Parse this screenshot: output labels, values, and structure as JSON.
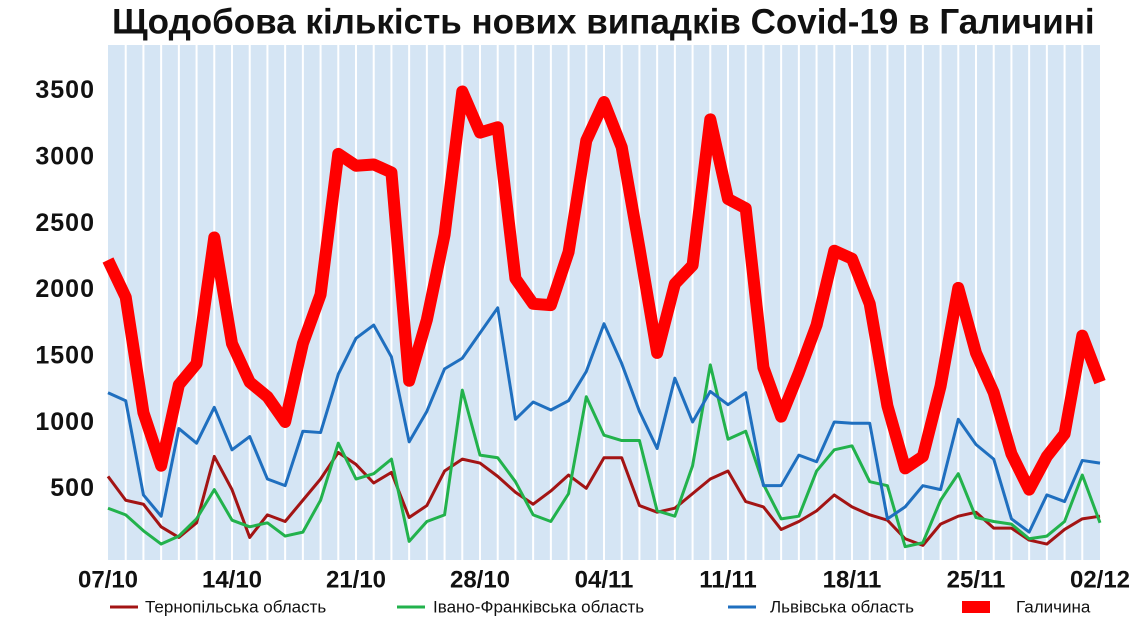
{
  "chart_data": {
    "type": "line",
    "title": "Щодобова кількість нових випадків Covid-19 в Галичині",
    "categories": [
      "07/10",
      null,
      null,
      null,
      null,
      null,
      null,
      "14/10",
      null,
      null,
      null,
      null,
      null,
      null,
      "21/10",
      null,
      null,
      null,
      null,
      null,
      null,
      "28/10",
      null,
      null,
      null,
      null,
      null,
      null,
      "04/11",
      null,
      null,
      null,
      null,
      null,
      null,
      "11/11",
      null,
      null,
      null,
      null,
      null,
      null,
      "18/11",
      null,
      null,
      null,
      null,
      null,
      null,
      "25/11",
      null,
      null,
      null,
      null,
      null,
      null,
      "02/12"
    ],
    "ylim": [
      0,
      3850
    ],
    "yticks": [
      500,
      1000,
      1500,
      2000,
      2500,
      3000,
      3500
    ],
    "series": [
      {
        "name": "Тернопільська область",
        "color": "#a31414",
        "line_width": 3,
        "values": [
          600,
          420,
          390,
          220,
          140,
          250,
          750,
          500,
          140,
          310,
          260,
          420,
          580,
          780,
          690,
          550,
          630,
          290,
          380,
          640,
          730,
          700,
          600,
          480,
          390,
          490,
          610,
          510,
          740,
          740,
          380,
          330,
          360,
          470,
          580,
          640,
          410,
          370,
          200,
          260,
          340,
          460,
          370,
          310,
          270,
          130,
          80,
          240,
          300,
          330,
          210,
          210,
          120,
          90,
          200,
          280,
          300
        ]
      },
      {
        "name": "Івано-Франківська область",
        "color": "#22b24c",
        "line_width": 3,
        "values": [
          360,
          310,
          190,
          90,
          150,
          280,
          500,
          270,
          220,
          250,
          150,
          180,
          420,
          850,
          580,
          620,
          730,
          110,
          260,
          310,
          1250,
          760,
          740,
          560,
          310,
          260,
          470,
          1200,
          910,
          870,
          870,
          340,
          300,
          680,
          1440,
          880,
          940,
          540,
          280,
          300,
          640,
          800,
          830,
          560,
          530,
          70,
          100,
          420,
          620,
          290,
          260,
          240,
          130,
          150,
          260,
          610,
          250
        ]
      },
      {
        "name": "Львівська область",
        "color": "#1f6fbf",
        "line_width": 3,
        "values": [
          1230,
          1170,
          460,
          300,
          960,
          850,
          1120,
          800,
          900,
          580,
          530,
          940,
          930,
          1370,
          1640,
          1740,
          1500,
          860,
          1090,
          1410,
          1490,
          1680,
          1870,
          1030,
          1160,
          1100,
          1170,
          1390,
          1750,
          1450,
          1090,
          810,
          1340,
          1010,
          1240,
          1140,
          1230,
          530,
          530,
          760,
          710,
          1010,
          1000,
          1000,
          280,
          370,
          530,
          500,
          1030,
          840,
          730,
          280,
          180,
          460,
          410,
          720,
          700
        ]
      },
      {
        "name": "Галичина",
        "color": "#ff0000",
        "line_width": 12,
        "values": [
          2230,
          1950,
          1080,
          680,
          1290,
          1450,
          2400,
          1600,
          1310,
          1200,
          1010,
          1600,
          1970,
          3030,
          2940,
          2950,
          2890,
          1320,
          1780,
          2420,
          3500,
          3190,
          3230,
          2090,
          1900,
          1890,
          2290,
          3130,
          3420,
          3080,
          2320,
          1530,
          2050,
          2190,
          3290,
          2690,
          2620,
          1420,
          1050,
          1380,
          1740,
          2300,
          2240,
          1900,
          1130,
          660,
          750,
          1280,
          2020,
          1530,
          1230,
          770,
          500,
          750,
          920,
          1660,
          1310
        ]
      }
    ]
  }
}
